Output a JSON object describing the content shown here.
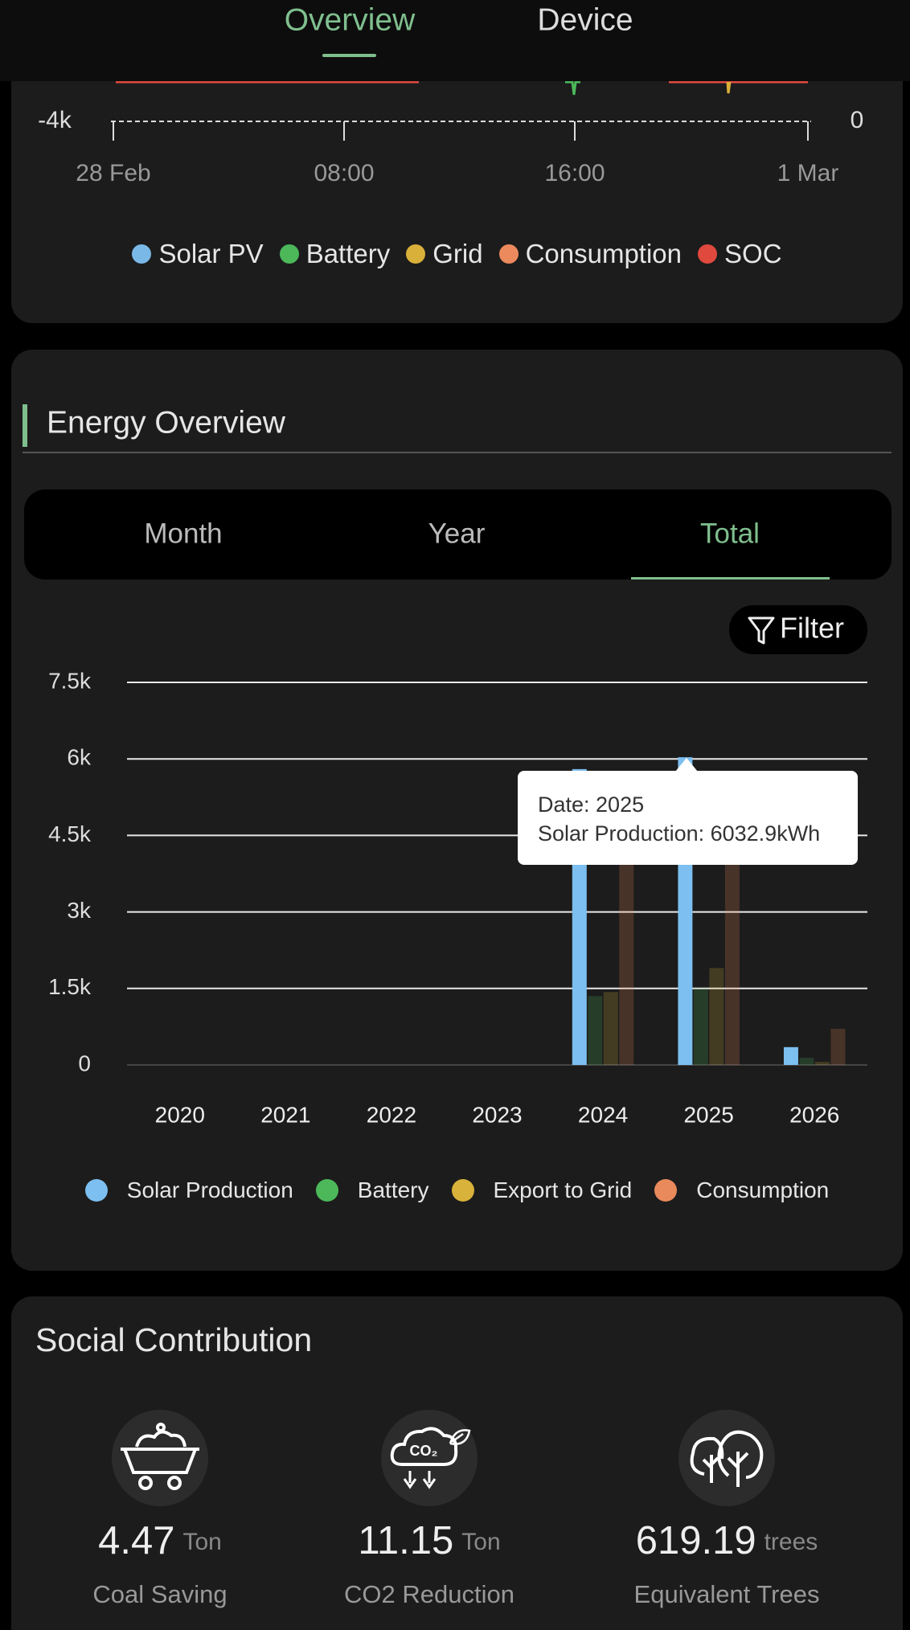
{
  "tabs": {
    "items": [
      "Overview",
      "Device"
    ]
  },
  "power_chart": {
    "y_tick": "-4k",
    "y2_tick": "0",
    "x_ticks": [
      "28 Feb",
      "08:00",
      "16:00",
      "1 Mar"
    ],
    "legend": [
      {
        "name": "Solar PV",
        "color": "#7ab8e8"
      },
      {
        "name": "Battery",
        "color": "#4cb85a"
      },
      {
        "name": "Grid",
        "color": "#d9b03a"
      },
      {
        "name": "Consumption",
        "color": "#ec8a5e"
      },
      {
        "name": "SOC",
        "color": "#e0493e"
      }
    ]
  },
  "energy_overview": {
    "title": "Energy Overview",
    "periods": [
      "Month",
      "Year",
      "Total"
    ],
    "filter": "Filter"
  },
  "chart_data": {
    "type": "bar",
    "categories": [
      "2020",
      "2021",
      "2022",
      "2023",
      "2024",
      "2025",
      "2026"
    ],
    "series": [
      {
        "name": "Solar Production",
        "color": "#7cbff0",
        "values": [
          0,
          0,
          0,
          0,
          5800,
          6032.9,
          350
        ]
      },
      {
        "name": "Battery",
        "color": "#4cb85a",
        "values": [
          0,
          0,
          0,
          0,
          1350,
          1500,
          140
        ]
      },
      {
        "name": "Export to Grid",
        "color": "#d8b23a",
        "values": [
          0,
          0,
          0,
          0,
          1430,
          1900,
          60
        ]
      },
      {
        "name": "Consumption",
        "color": "#e88a5c",
        "values": [
          0,
          0,
          0,
          0,
          4900,
          5000,
          710
        ]
      }
    ],
    "ylim": [
      0,
      7500
    ],
    "yticks": [
      0,
      {
        "value": 1500,
        "label": "1.5k"
      },
      {
        "value": 3000,
        "label": "3k"
      },
      {
        "value": 4500,
        "label": "4.5k"
      },
      {
        "value": 6000,
        "label": "6k"
      },
      {
        "value": 7500,
        "label": "7.5k"
      }
    ],
    "grid": true,
    "tooltip": {
      "lines": [
        "Date: 2025",
        "Solar Production: 6032.9kWh"
      ]
    }
  },
  "social": {
    "title": "Social Contribution",
    "items": [
      {
        "value": 4.47,
        "unit": "Ton",
        "label": "Coal Saving",
        "icon_text": null
      },
      {
        "value": 11.15,
        "unit": "Ton",
        "label": "CO2 Reduction",
        "icon_text": "CO₂"
      },
      {
        "value": 619.19,
        "unit": "trees",
        "label": "Equivalent Trees",
        "icon_text": null
      }
    ]
  }
}
